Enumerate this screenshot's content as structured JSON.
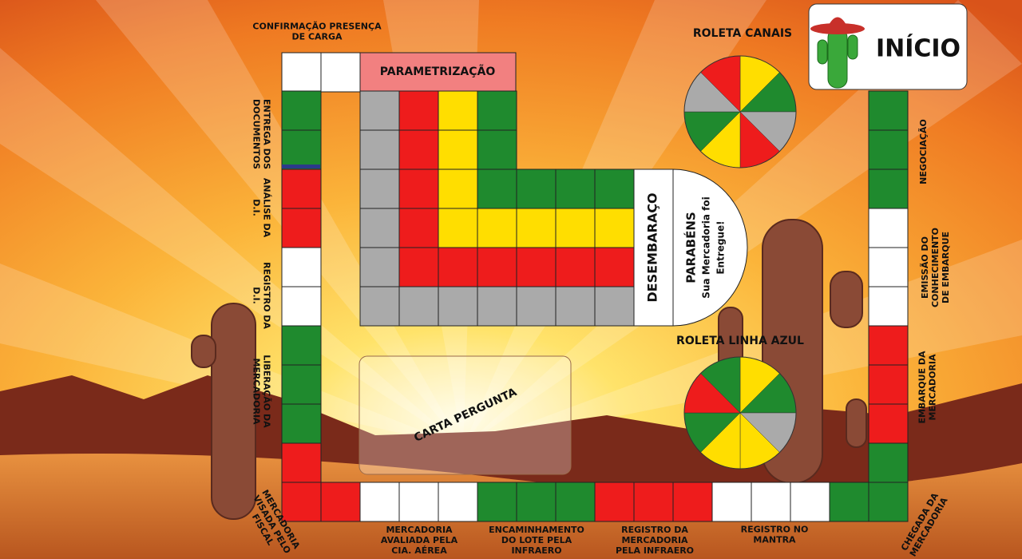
{
  "start_button": "INÍCIO",
  "parametrizacao": "PARAMETRIZAÇÃO",
  "desembaraco": "DESEMBARAÇO",
  "finish": [
    "PARABÉNS",
    "Sua Mercadoria foi",
    "Entregue!"
  ],
  "roulettes": [
    "ROLETA CANAIS",
    "ROLETA LINHA AZUL"
  ],
  "question_card": "CARTA PERGUNTA",
  "steps": [
    {
      "lines": [
        "CONFIRMAÇÃO PRESENÇA",
        "DE CARGA"
      ]
    },
    {
      "lines": [
        "ENTREGA DOS",
        "DOCUMENTOS"
      ]
    },
    {
      "lines": [
        "ANÁLISE DA",
        "D.I."
      ]
    },
    {
      "lines": [
        "REGISTRO DA",
        "D.I."
      ]
    },
    {
      "lines": [
        "LIBERAÇÃO DA",
        "MERCADORIA"
      ]
    },
    {
      "lines": [
        "MERCADORIA",
        "VISADA PELO",
        "FISCAL"
      ]
    },
    {
      "lines": [
        "MERCADORIA",
        "AVALIADA PELA",
        "CIA. AÉREA"
      ]
    },
    {
      "lines": [
        "ENCAMINHAMENTO",
        "DO LOTE PELA",
        "INFRAERO"
      ]
    },
    {
      "lines": [
        "REGISTRO DA",
        "MERCADORIA",
        "PELA INFRAERO"
      ]
    },
    {
      "lines": [
        "REGISTRO NO",
        "MANTRA"
      ]
    },
    {
      "lines": [
        "CHEGADA DA",
        "MERCADORIA"
      ]
    },
    {
      "lines": [
        "NEGOCIAÇÃO"
      ]
    },
    {
      "lines": [
        "EMISSÃO DO",
        "CONHECIMENTO",
        "DE EMBARQUE"
      ]
    },
    {
      "lines": [
        "EMBARQUE DA",
        "MERCADORIA"
      ]
    }
  ]
}
